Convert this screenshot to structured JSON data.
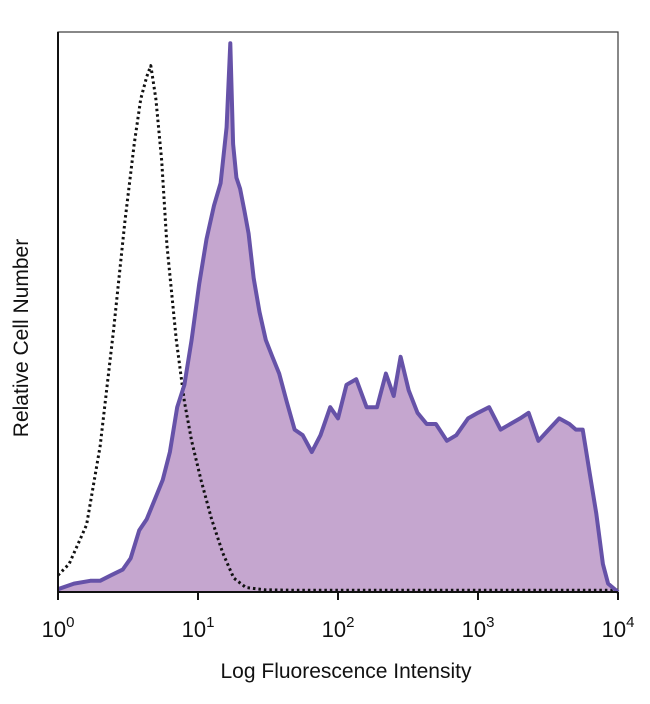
{
  "chart_data": {
    "type": "area",
    "xlabel": "Log Fluorescence Intensity",
    "ylabel": "Relative Cell Number",
    "xscale": "log",
    "xlim": [
      1,
      10000
    ],
    "ylim": [
      0,
      100
    ],
    "x_ticks": [
      {
        "base": "10",
        "exp": "0",
        "value": 1
      },
      {
        "base": "10",
        "exp": "1",
        "value": 10
      },
      {
        "base": "10",
        "exp": "2",
        "value": 100
      },
      {
        "base": "10",
        "exp": "3",
        "value": 1000
      },
      {
        "base": "10",
        "exp": "4",
        "value": 10000
      }
    ],
    "grid": false,
    "legend": "none",
    "series": [
      {
        "style": "dotted",
        "color": "#111111",
        "fill": "none",
        "x": [
          1,
          1.2,
          1.6,
          2.0,
          2.5,
          3.0,
          3.5,
          3.9,
          4.3,
          4.6,
          5.0,
          5.5,
          6.0,
          7.0,
          8.0,
          9.0,
          10.5,
          12.5,
          15.0,
          18.0,
          22.0,
          30.0,
          50.0,
          100.0,
          1000.0,
          10000.0
        ],
        "values": [
          3,
          5,
          12,
          26,
          47,
          66,
          80,
          88,
          92,
          94,
          88,
          77,
          62,
          45,
          34,
          27,
          20,
          13,
          7,
          2.5,
          0.8,
          0.4,
          0.3,
          0.3,
          0.3,
          0.3
        ]
      },
      {
        "style": "solid",
        "color": "#6652a8",
        "fill": "#c5a6cf",
        "x": [
          1,
          1.3,
          1.7,
          2.0,
          2.4,
          2.9,
          3.3,
          3.8,
          4.3,
          5.0,
          5.6,
          6.3,
          7.1,
          8.0,
          9.0,
          10.2,
          11.5,
          13.0,
          14.5,
          16.0,
          17.0,
          17.8,
          18.8,
          20.0,
          21.5,
          23.0,
          25.0,
          27.5,
          30.5,
          34.0,
          38.0,
          43.0,
          49.0,
          56.0,
          65.0,
          75.0,
          88.0,
          100.0,
          115.0,
          135.0,
          160.0,
          190.0,
          220.0,
          250.0,
          280.0,
          320.0,
          370.0,
          430.0,
          500.0,
          600.0,
          700.0,
          850.0,
          1000.0,
          1200.0,
          1450.0,
          1700.0,
          2000.0,
          2300.0,
          2700.0,
          3200.0,
          3800.0,
          4500.0,
          5000.0,
          5600.0,
          6300.0,
          7000.0,
          7800.0,
          8500.0,
          10000.0
        ],
        "values": [
          0.5,
          1.5,
          2,
          2,
          3,
          4,
          6,
          11,
          13,
          17,
          20,
          25,
          33,
          37,
          45,
          55,
          63,
          69,
          73,
          83,
          98,
          80,
          74,
          72,
          68,
          64,
          56,
          50,
          45,
          42,
          39,
          34,
          29,
          28,
          25,
          28,
          33,
          31,
          37,
          38,
          33,
          33,
          39,
          35,
          42,
          36,
          32,
          30,
          30,
          27,
          28,
          31,
          32,
          33,
          29,
          30,
          31,
          32,
          27,
          29,
          31,
          30,
          29,
          29,
          21,
          14,
          5,
          1.5,
          0
        ]
      }
    ]
  }
}
